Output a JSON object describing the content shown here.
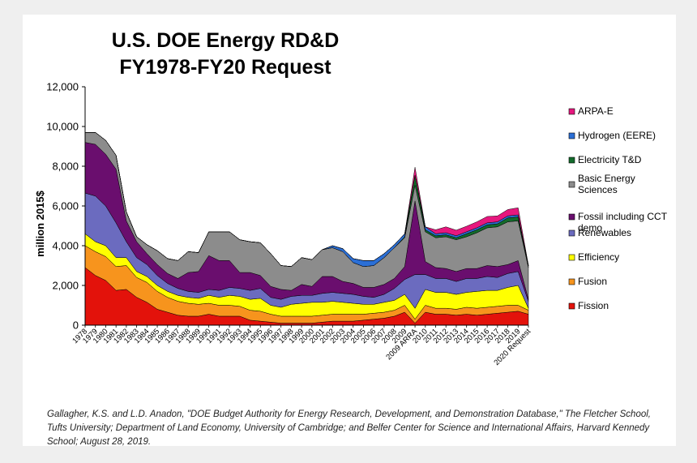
{
  "chart_data": {
    "type": "area",
    "stacked": true,
    "title_line1": "U.S. DOE Energy RD&D",
    "title_line2": "FY1978-FY20 Request",
    "ylabel": "million 2015$",
    "xlabel": "",
    "ylim": [
      0,
      12000
    ],
    "yticks": [
      0,
      2000,
      4000,
      6000,
      8000,
      10000,
      12000
    ],
    "ytick_labels": [
      "0",
      "2,000",
      "4,000",
      "6,000",
      "8,000",
      "10,000",
      "12,000"
    ],
    "grid": false,
    "legend_position": "right",
    "categories": [
      "1978",
      "1979",
      "1980",
      "1981",
      "1982",
      "1983",
      "1984",
      "1985",
      "1986",
      "1987",
      "1988",
      "1989",
      "1990",
      "1991",
      "1992",
      "1993",
      "1994",
      "1995",
      "1996",
      "1997",
      "1998",
      "1999",
      "2000",
      "2001",
      "2002",
      "2003",
      "2004",
      "2005",
      "2006",
      "2007",
      "2008",
      "2009",
      "2009 ARRA",
      "2010",
      "2011",
      "2012",
      "2013",
      "2014",
      "2015",
      "2016",
      "2017",
      "2018",
      "2019",
      "2020 Request"
    ],
    "series": [
      {
        "name": "Fission",
        "color": "#e3120b",
        "values": [
          2900,
          2500,
          2250,
          1750,
          1800,
          1400,
          1150,
          800,
          650,
          500,
          450,
          450,
          550,
          450,
          450,
          450,
          250,
          200,
          150,
          100,
          100,
          100,
          100,
          150,
          200,
          200,
          200,
          250,
          300,
          350,
          450,
          650,
          100,
          650,
          550,
          550,
          500,
          550,
          500,
          550,
          600,
          650,
          700,
          550
        ]
      },
      {
        "name": "Fusion",
        "color": "#f7941d",
        "values": [
          1100,
          1200,
          1200,
          1200,
          1200,
          1000,
          1000,
          900,
          750,
          700,
          650,
          600,
          550,
          550,
          550,
          500,
          500,
          500,
          400,
          350,
          350,
          350,
          350,
          350,
          350,
          350,
          350,
          300,
          300,
          300,
          300,
          350,
          200,
          350,
          300,
          300,
          300,
          350,
          350,
          350,
          350,
          350,
          300,
          200
        ]
      },
      {
        "name": "Efficiency",
        "color": "#ffff00",
        "values": [
          600,
          500,
          550,
          450,
          400,
          300,
          300,
          300,
          300,
          300,
          300,
          300,
          400,
          400,
          500,
          500,
          550,
          650,
          450,
          450,
          600,
          650,
          700,
          650,
          650,
          600,
          550,
          500,
          450,
          500,
          500,
          550,
          550,
          800,
          800,
          800,
          750,
          750,
          850,
          850,
          800,
          900,
          1000,
          100
        ]
      },
      {
        "name": "Renewables",
        "color": "#6b6bbf",
        "values": [
          2050,
          2300,
          2000,
          1750,
          800,
          700,
          600,
          500,
          400,
          350,
          300,
          300,
          300,
          350,
          400,
          400,
          450,
          500,
          400,
          400,
          400,
          400,
          350,
          450,
          450,
          450,
          450,
          400,
          350,
          400,
          600,
          750,
          1700,
          750,
          700,
          700,
          650,
          700,
          650,
          700,
          650,
          700,
          700,
          350
        ]
      },
      {
        "name": "Fossil including CCT demo",
        "color": "#6a0e6e",
        "values": [
          2550,
          2600,
          2600,
          2700,
          1050,
          800,
          550,
          550,
          500,
          500,
          950,
          1050,
          1700,
          1500,
          1350,
          800,
          900,
          650,
          550,
          500,
          300,
          550,
          450,
          850,
          800,
          600,
          550,
          450,
          500,
          500,
          500,
          650,
          3700,
          650,
          550,
          500,
          500,
          500,
          500,
          550,
          550,
          450,
          550,
          100
        ]
      },
      {
        "name": "Basic Energy Sciences",
        "color": "#8c8c8c",
        "values": [
          500,
          600,
          700,
          700,
          450,
          250,
          450,
          700,
          750,
          900,
          1050,
          950,
          1200,
          1450,
          1450,
          1650,
          1550,
          1650,
          1650,
          1200,
          1200,
          1350,
          1350,
          1350,
          1450,
          1500,
          1050,
          1050,
          1100,
          1350,
          1550,
          1450,
          800,
          1500,
          1500,
          1600,
          1600,
          1600,
          1800,
          1900,
          2000,
          2150,
          2000,
          1600
        ]
      },
      {
        "name": "Electricity T&D",
        "color": "#136b2b",
        "values": [
          0,
          0,
          0,
          0,
          0,
          0,
          0,
          0,
          0,
          0,
          0,
          0,
          0,
          0,
          0,
          0,
          0,
          0,
          0,
          0,
          0,
          0,
          0,
          0,
          0,
          0,
          0,
          0,
          0,
          0,
          0,
          50,
          500,
          100,
          100,
          100,
          100,
          150,
          150,
          150,
          150,
          200,
          200,
          80
        ]
      },
      {
        "name": "Hydrogen (EERE)",
        "color": "#2b6fd6",
        "values": [
          0,
          0,
          0,
          0,
          0,
          0,
          0,
          0,
          0,
          0,
          0,
          0,
          0,
          0,
          0,
          0,
          0,
          0,
          0,
          0,
          0,
          0,
          0,
          0,
          100,
          150,
          200,
          300,
          250,
          200,
          150,
          150,
          0,
          150,
          100,
          100,
          100,
          100,
          100,
          100,
          100,
          100,
          100,
          30
        ]
      },
      {
        "name": "ARPA-E",
        "color": "#e6177e",
        "values": [
          0,
          0,
          0,
          0,
          0,
          0,
          0,
          0,
          0,
          0,
          0,
          0,
          0,
          0,
          0,
          0,
          0,
          0,
          0,
          0,
          0,
          0,
          0,
          0,
          0,
          0,
          0,
          0,
          0,
          0,
          0,
          0,
          400,
          0,
          200,
          300,
          280,
          280,
          300,
          320,
          300,
          320,
          360,
          0
        ]
      }
    ],
    "legend_order": [
      "ARPA-E",
      "Hydrogen (EERE)",
      "Electricity T&D",
      "Basic Energy Sciences",
      "Fossil including CCT demo",
      "Renewables",
      "Efficiency",
      "Fusion",
      "Fission"
    ]
  },
  "source": "Gallagher, K.S. and L.D. Anadon, \"DOE Budget Authority for Energy Research, Development, and Demonstration Database,\" The Fletcher School, Tufts University; Department of Land Economy, University of Cambridge; and Belfer Center for Science and International Affairs, Harvard Kennedy School; August 28, 2019."
}
